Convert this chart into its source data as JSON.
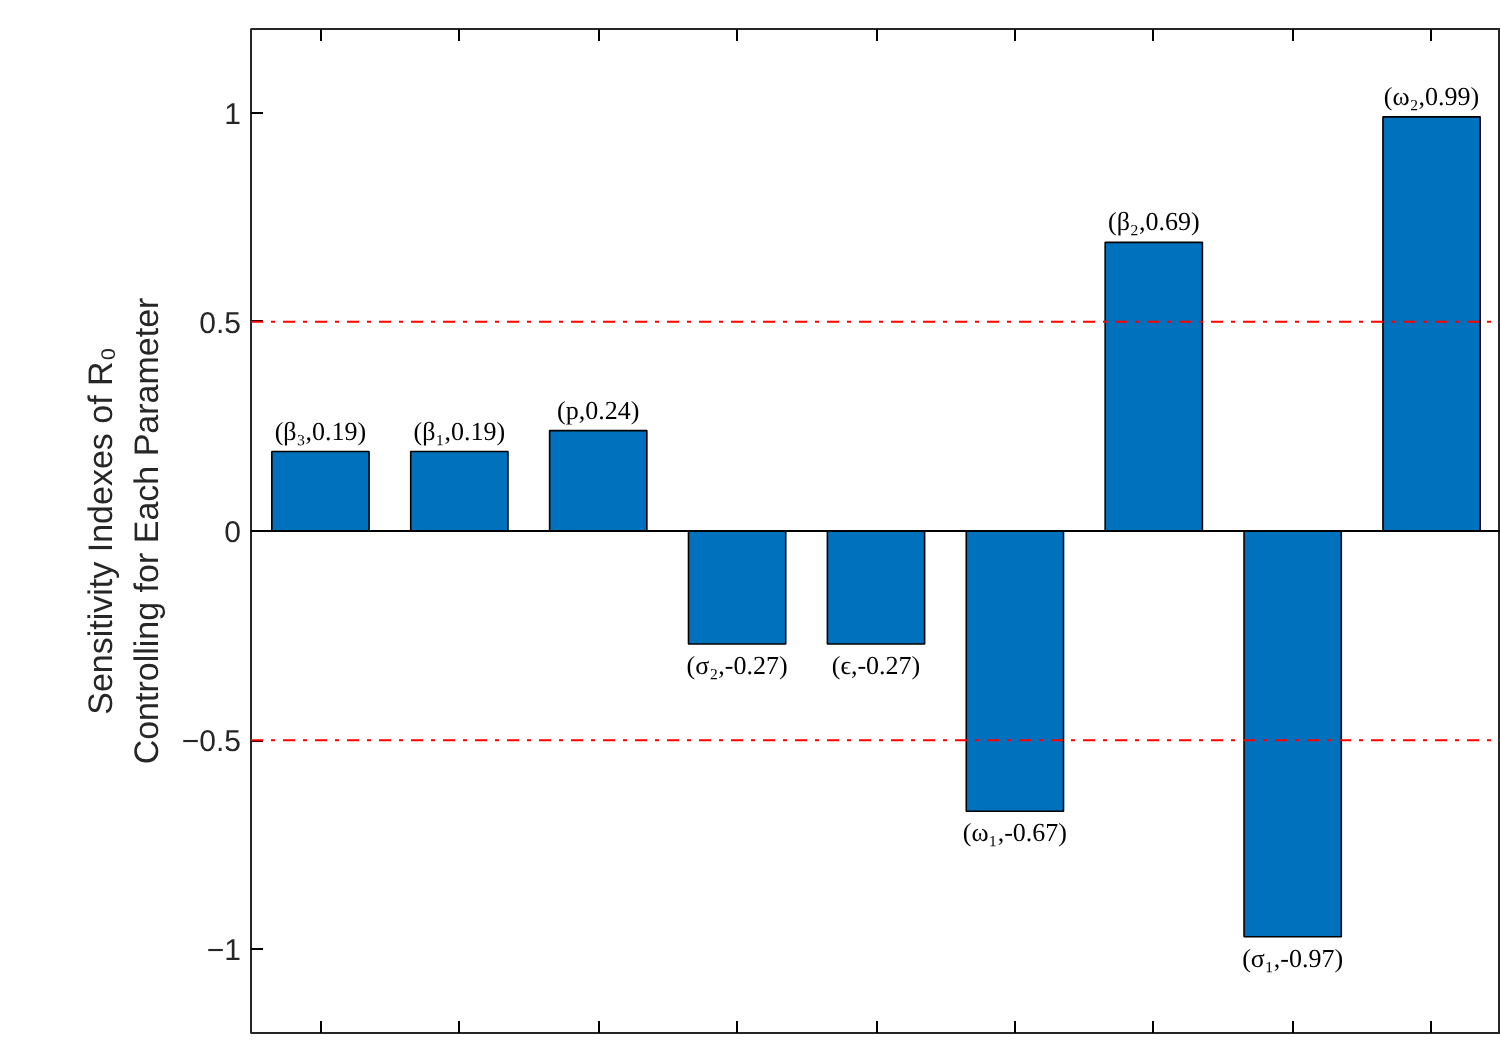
{
  "chart_data": {
    "type": "bar",
    "ylabel": "Sensitivity Indexes of R₀\nControlling for Each Parameter",
    "categories": [
      null,
      null,
      null,
      null,
      null,
      null,
      null,
      null,
      null
    ],
    "values": [
      0.19,
      0.19,
      0.24,
      -0.27,
      -0.27,
      -0.67,
      0.69,
      -0.97,
      0.99
    ],
    "value_labels": [
      "(β₃,0.19)",
      "(β₁,0.19)",
      "(p,0.24)",
      "(σ₂,-0.27)",
      "(ϵ,-0.27)",
      "(ω₁,-0.67)",
      "(β₂,0.69)",
      "(σ₁,-0.97)",
      "(ω₂,0.99)"
    ],
    "color": "#0072bd",
    "ylim": [
      -1.2,
      1.2
    ],
    "yticks": [
      -1,
      -0.5,
      0,
      0.5,
      1
    ],
    "ref_lines": [
      {
        "axis": "y",
        "value": 0,
        "color": "#000000",
        "line_style": "solid"
      },
      {
        "axis": "y",
        "value": 0.5,
        "color": "#ff0000",
        "line_style": "dashdot"
      },
      {
        "axis": "y",
        "value": -0.5,
        "color": "#ff0000",
        "line_style": "dashdot"
      }
    ],
    "tick_labels": "y",
    "grid": false
  }
}
